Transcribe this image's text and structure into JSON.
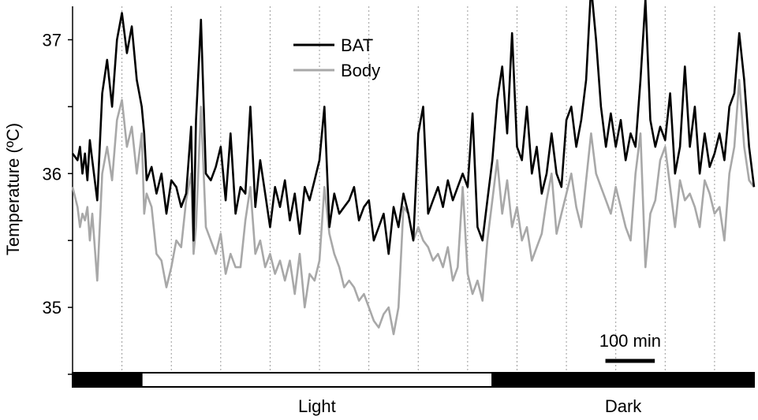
{
  "chart_data": {
    "type": "line",
    "ylabel": "Temperature (ºC)",
    "ylim": [
      34.5,
      37.25
    ],
    "yticks": [
      35,
      36,
      37
    ],
    "xlim": [
      0,
      1380
    ],
    "x_unit": "min",
    "vertical_grid_minutes": [
      100,
      200,
      300,
      400,
      500,
      600,
      700,
      800,
      900,
      1000,
      1100,
      1200,
      1300
    ],
    "grid_style": "dotted-vertical",
    "legend_position": "top-center",
    "colors": {
      "bat": "#000000",
      "body": "#a8a8a8"
    },
    "scale_bar": {
      "label": "100 min",
      "minutes": 100
    },
    "light_dark_bar": [
      {
        "phase": "dark",
        "start": 0,
        "end": 140
      },
      {
        "phase": "light",
        "start": 140,
        "end": 850,
        "label": "Light"
      },
      {
        "phase": "dark",
        "start": 850,
        "end": 1380,
        "label": "Dark"
      }
    ],
    "series": [
      {
        "name": "BAT",
        "color": "#000000",
        "x": [
          0,
          10,
          15,
          20,
          25,
          30,
          35,
          40,
          50,
          60,
          70,
          80,
          90,
          100,
          110,
          120,
          130,
          140,
          145,
          150,
          160,
          170,
          180,
          190,
          200,
          210,
          220,
          230,
          240,
          245,
          250,
          260,
          270,
          280,
          290,
          300,
          310,
          320,
          330,
          340,
          350,
          360,
          370,
          380,
          390,
          400,
          410,
          420,
          430,
          440,
          450,
          460,
          470,
          480,
          490,
          500,
          510,
          520,
          530,
          540,
          550,
          560,
          570,
          580,
          590,
          600,
          610,
          620,
          630,
          640,
          650,
          660,
          670,
          680,
          690,
          700,
          710,
          720,
          730,
          740,
          750,
          760,
          770,
          780,
          790,
          800,
          810,
          820,
          830,
          840,
          850,
          860,
          870,
          880,
          890,
          900,
          910,
          920,
          930,
          940,
          950,
          960,
          970,
          980,
          990,
          1000,
          1010,
          1020,
          1030,
          1040,
          1050,
          1060,
          1070,
          1080,
          1090,
          1100,
          1110,
          1120,
          1130,
          1140,
          1150,
          1160,
          1170,
          1180,
          1190,
          1200,
          1210,
          1220,
          1230,
          1240,
          1250,
          1260,
          1270,
          1280,
          1290,
          1300,
          1310,
          1320,
          1330,
          1340,
          1350,
          1360,
          1370,
          1380
        ],
        "y": [
          36.15,
          36.1,
          36.2,
          36.0,
          36.15,
          35.95,
          36.25,
          36.1,
          35.8,
          36.6,
          36.85,
          36.5,
          37.0,
          37.2,
          36.9,
          37.1,
          36.7,
          36.5,
          36.3,
          35.95,
          36.05,
          35.85,
          36.0,
          35.7,
          35.95,
          35.9,
          35.75,
          35.85,
          36.35,
          35.5,
          36.4,
          37.15,
          36.0,
          35.95,
          36.05,
          36.2,
          35.8,
          36.3,
          35.7,
          35.9,
          35.85,
          36.5,
          35.75,
          36.1,
          35.85,
          35.6,
          35.9,
          35.75,
          35.95,
          35.65,
          35.85,
          35.55,
          35.9,
          35.8,
          35.95,
          36.1,
          36.5,
          35.6,
          35.85,
          35.7,
          35.75,
          35.8,
          35.9,
          35.65,
          35.75,
          35.8,
          35.5,
          35.6,
          35.7,
          35.4,
          35.75,
          35.6,
          35.85,
          35.7,
          35.5,
          36.3,
          36.5,
          35.7,
          35.8,
          35.9,
          35.75,
          35.95,
          35.8,
          35.9,
          36.0,
          35.9,
          36.45,
          35.6,
          35.5,
          35.8,
          36.1,
          36.55,
          36.8,
          36.3,
          37.05,
          36.2,
          36.1,
          36.5,
          36.0,
          36.2,
          35.85,
          36.0,
          36.3,
          36.0,
          35.9,
          36.4,
          36.5,
          36.2,
          36.4,
          36.7,
          37.4,
          37.0,
          36.5,
          36.2,
          36.45,
          36.2,
          36.4,
          36.1,
          36.3,
          36.2,
          36.7,
          37.3,
          36.4,
          36.2,
          36.35,
          36.25,
          36.6,
          36.0,
          36.2,
          36.8,
          36.2,
          36.5,
          36.0,
          36.3,
          36.05,
          36.15,
          36.3,
          36.1,
          36.5,
          36.6,
          37.05,
          36.7,
          36.2,
          35.9
        ]
      },
      {
        "name": "Body",
        "color": "#a8a8a8",
        "x": [
          0,
          10,
          15,
          20,
          25,
          30,
          35,
          40,
          50,
          60,
          70,
          80,
          90,
          100,
          110,
          120,
          130,
          140,
          145,
          150,
          160,
          170,
          180,
          190,
          200,
          210,
          220,
          230,
          240,
          245,
          250,
          260,
          270,
          280,
          290,
          300,
          310,
          320,
          330,
          340,
          350,
          360,
          370,
          380,
          390,
          400,
          410,
          420,
          430,
          440,
          450,
          460,
          470,
          480,
          490,
          500,
          510,
          520,
          530,
          540,
          550,
          560,
          570,
          580,
          590,
          600,
          610,
          620,
          630,
          640,
          650,
          660,
          670,
          680,
          690,
          700,
          710,
          720,
          730,
          740,
          750,
          760,
          770,
          780,
          790,
          800,
          810,
          820,
          830,
          840,
          850,
          860,
          870,
          880,
          890,
          900,
          910,
          920,
          930,
          940,
          950,
          960,
          970,
          980,
          990,
          1000,
          1010,
          1020,
          1030,
          1040,
          1050,
          1060,
          1070,
          1080,
          1090,
          1100,
          1110,
          1120,
          1130,
          1140,
          1150,
          1160,
          1170,
          1180,
          1190,
          1200,
          1210,
          1220,
          1230,
          1240,
          1250,
          1260,
          1270,
          1280,
          1290,
          1300,
          1310,
          1320,
          1330,
          1340,
          1350,
          1360,
          1370,
          1380
        ],
        "y": [
          35.9,
          35.75,
          35.6,
          35.7,
          35.65,
          35.75,
          35.5,
          35.7,
          35.2,
          36.0,
          36.2,
          35.95,
          36.4,
          36.55,
          36.2,
          36.35,
          36.0,
          36.3,
          35.7,
          35.85,
          35.75,
          35.4,
          35.35,
          35.15,
          35.3,
          35.5,
          35.45,
          35.8,
          36.0,
          35.4,
          35.6,
          36.5,
          35.6,
          35.5,
          35.4,
          35.55,
          35.25,
          35.4,
          35.3,
          35.3,
          35.65,
          35.9,
          35.4,
          35.5,
          35.3,
          35.4,
          35.25,
          35.35,
          35.2,
          35.35,
          35.1,
          35.4,
          35.0,
          35.25,
          35.2,
          35.35,
          35.9,
          35.55,
          35.4,
          35.3,
          35.15,
          35.2,
          35.15,
          35.05,
          35.1,
          35.0,
          34.9,
          34.85,
          34.95,
          35.0,
          34.8,
          35.0,
          35.75,
          35.7,
          35.5,
          35.6,
          35.5,
          35.45,
          35.35,
          35.4,
          35.3,
          35.45,
          35.2,
          35.3,
          35.9,
          35.25,
          35.1,
          35.2,
          35.05,
          35.5,
          35.8,
          36.1,
          35.7,
          35.95,
          35.6,
          35.75,
          35.5,
          35.6,
          35.35,
          35.45,
          35.55,
          35.8,
          36.0,
          35.55,
          35.7,
          35.85,
          36.0,
          35.75,
          35.6,
          35.95,
          36.3,
          36.0,
          35.9,
          35.8,
          35.7,
          35.9,
          35.75,
          35.6,
          35.5,
          36.0,
          36.3,
          35.3,
          35.7,
          35.8,
          36.1,
          36.2,
          35.9,
          35.6,
          35.95,
          35.8,
          35.85,
          35.75,
          35.6,
          35.95,
          35.85,
          35.7,
          35.75,
          35.5,
          36.0,
          36.2,
          36.7,
          36.2,
          35.95,
          35.9
        ]
      }
    ]
  }
}
